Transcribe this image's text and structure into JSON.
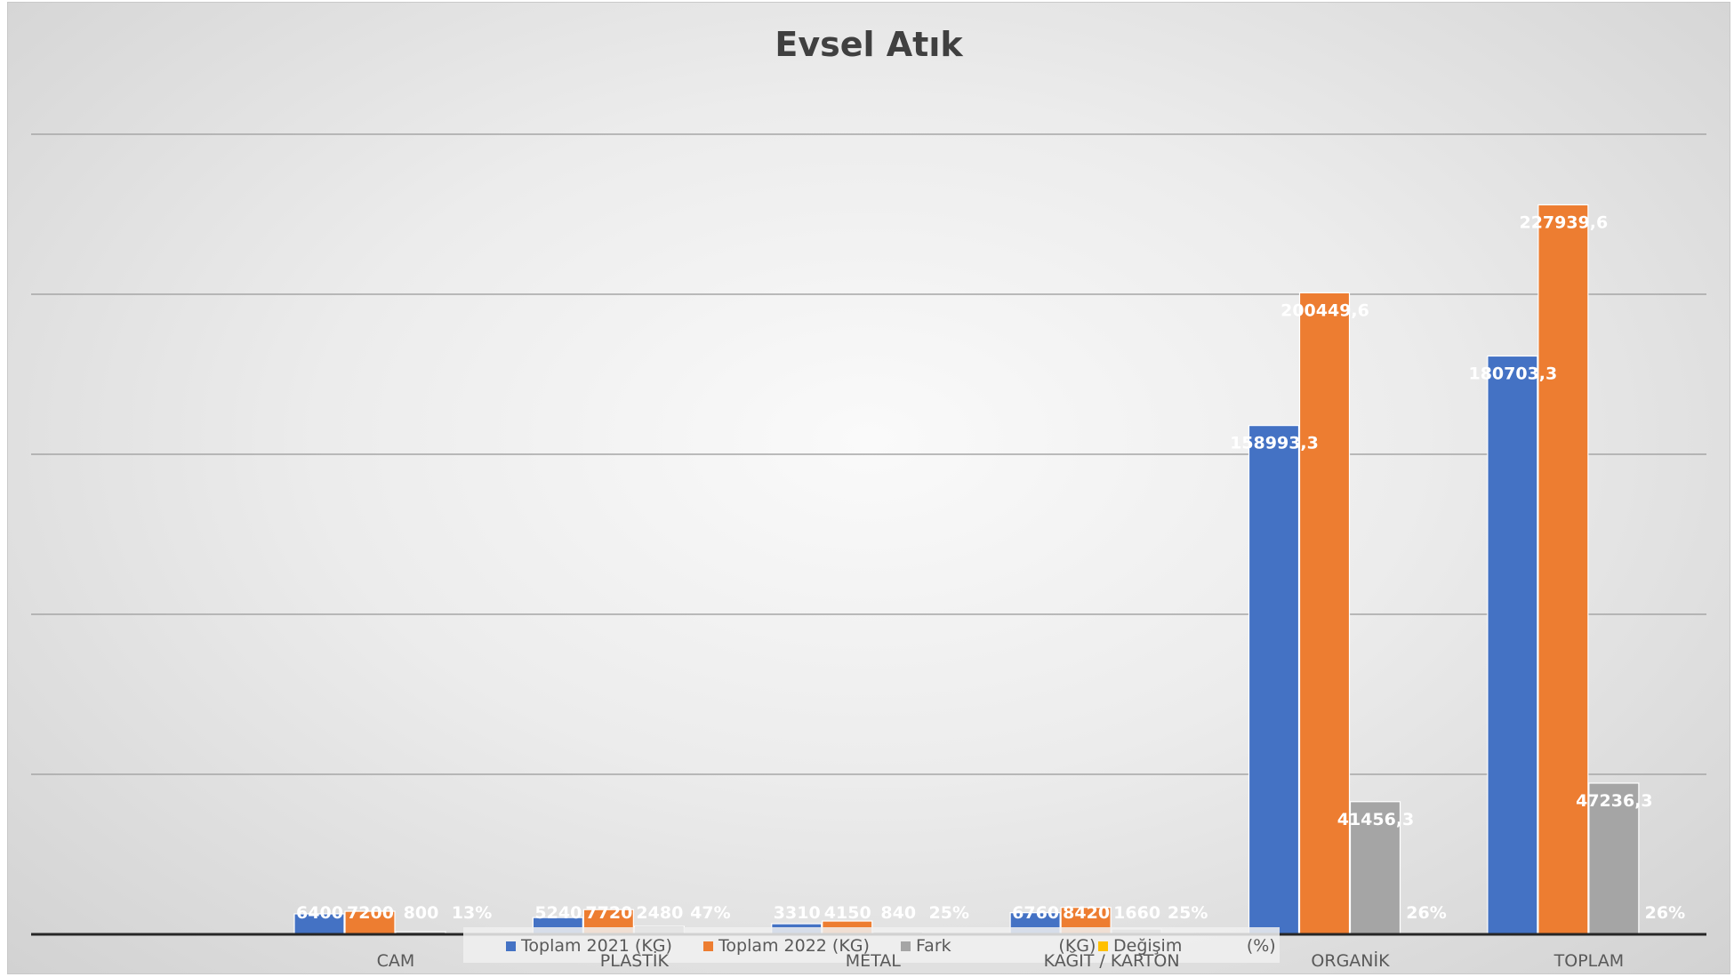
{
  "chart_data": {
    "type": "bar",
    "title": "Evsel Atık",
    "categories": [
      "CAM",
      "PLASTİK",
      "METAL",
      "KAĞIT / KARTON",
      "ORGANİK",
      "TOPLAM"
    ],
    "series": [
      {
        "name": "Toplam 2021 (KG)",
        "color": "#4472C4",
        "values": [
          6400,
          5240,
          3310,
          6760,
          158993.3,
          180703.3
        ],
        "labels": [
          "6400",
          "5240",
          "3310",
          "6760",
          "158993,3",
          "180703,3"
        ]
      },
      {
        "name": "Toplam 2022 (KG)",
        "color": "#ED7D31",
        "values": [
          7200,
          7720,
          4150,
          8420,
          200449.6,
          227939.6
        ],
        "labels": [
          "7200",
          "7720",
          "4150",
          "8420",
          "200449,6",
          "227939,6"
        ]
      },
      {
        "name": "Fark                    (KG)",
        "color": "#A5A5A5",
        "values": [
          800,
          2480,
          840,
          1660,
          41456.3,
          47236.3
        ],
        "labels": [
          "800",
          "2480",
          "840",
          "1660",
          "41456,3",
          "47236,3"
        ]
      },
      {
        "name": "Değişim            (%)",
        "color": "#FFC000",
        "values": [
          0.13,
          0.47,
          0.25,
          0.25,
          0.26,
          0.26
        ],
        "labels": [
          "13%",
          "47%",
          "25%",
          "25%",
          "26%",
          "26%"
        ]
      }
    ],
    "ylim": [
      0,
      250000
    ],
    "grid": true,
    "legend_position": "bottom",
    "xlabel": "",
    "ylabel": ""
  }
}
